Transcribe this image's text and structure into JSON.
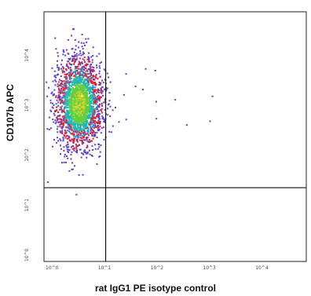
{
  "chart_data": {
    "type": "scatter",
    "subtype": "flow-cytometry-density-dot-plot",
    "xlabel": "rat IgG1 PE isotype control",
    "ylabel": "CD107b APC",
    "xscale": "log",
    "yscale": "log",
    "xlim": [
      1,
      100000
    ],
    "ylim": [
      1,
      100000
    ],
    "x_ticks": [
      "10^0",
      "10^1",
      "10^2",
      "10^3",
      "10^4"
    ],
    "y_ticks": [
      "10^0",
      "10^1",
      "10^2",
      "10^3",
      "10^4"
    ],
    "quadrant_gate": {
      "x": 15,
      "y": 30
    },
    "cluster": {
      "center_x": 4.5,
      "center_y": 1500,
      "spread_x_decades": 0.22,
      "spread_y_decades": 0.45
    },
    "density_colors": [
      "#5b3fd0",
      "#e0202a",
      "#2f8fe0",
      "#23b8b0",
      "#5fd040",
      "#e8d020"
    ],
    "grid": false
  }
}
